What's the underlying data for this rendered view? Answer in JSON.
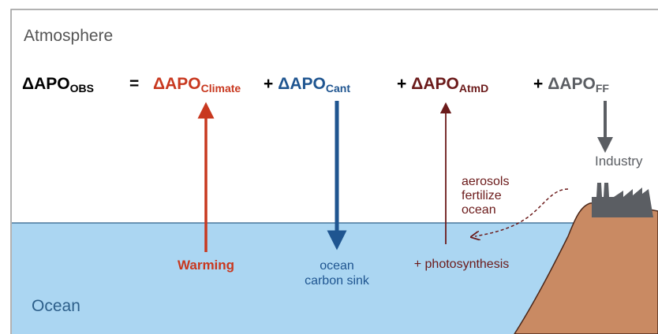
{
  "panel": {
    "atmosphere": "Atmosphere",
    "ocean": "Ocean"
  },
  "equation": {
    "lhs": {
      "main": "ΔAPO",
      "sub": "OBS"
    },
    "equals": "=",
    "terms": [
      {
        "op": "",
        "main": "ΔAPO",
        "sub": "Climate"
      },
      {
        "op": "+",
        "main": "ΔAPO",
        "sub": "Cant"
      },
      {
        "op": "+",
        "main": "ΔAPO",
        "sub": "AtmD"
      },
      {
        "op": "+",
        "main": "ΔAPO",
        "sub": "FF"
      }
    ]
  },
  "labels": {
    "warming": "Warming",
    "sink": [
      "ocean",
      "carbon sink"
    ],
    "photosynthesis": "+ photosynthesis",
    "aerosols": [
      "aerosols",
      "fertilize",
      "ocean"
    ],
    "industry": "Industry"
  }
}
